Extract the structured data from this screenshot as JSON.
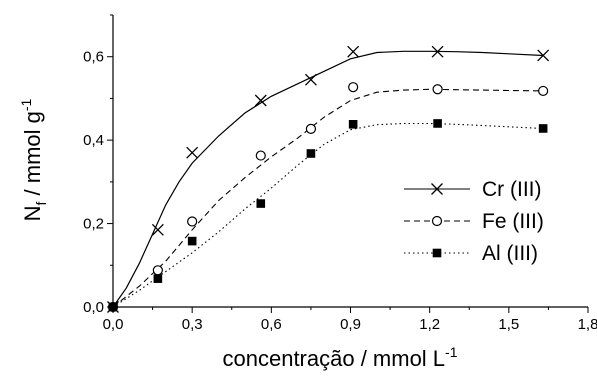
{
  "chart_data": {
    "type": "line",
    "xlabel": "concentração / mmol L",
    "xlabel_sup": "-1",
    "ylabel_main": "N",
    "ylabel_sub": "f",
    "ylabel_rest": " / mmol g",
    "ylabel_sup": "-1",
    "xlim": [
      0.0,
      1.8
    ],
    "ylim": [
      0.0,
      0.7
    ],
    "xticks": [
      0.0,
      0.3,
      0.6,
      0.9,
      1.2,
      1.5,
      1.8
    ],
    "xtick_labels": [
      "0,0",
      "0,3",
      "0,6",
      "0,9",
      "1,2",
      "1,5",
      "1,8"
    ],
    "yticks": [
      0.0,
      0.2,
      0.4,
      0.6
    ],
    "ytick_labels": [
      "0,0",
      "0,2",
      "0,4",
      "0,6"
    ],
    "legend_position": "lower-right",
    "grid": false,
    "series": [
      {
        "name": "Cr (III)",
        "marker": "x",
        "line": "solid",
        "x": [
          0.0,
          0.17,
          0.3,
          0.56,
          0.75,
          0.91,
          1.23,
          1.63
        ],
        "y": [
          0.0,
          0.185,
          0.37,
          0.495,
          0.545,
          0.612,
          0.612,
          0.603
        ],
        "curve_x": [
          0.0,
          0.05,
          0.1,
          0.15,
          0.2,
          0.25,
          0.3,
          0.4,
          0.5,
          0.6,
          0.7,
          0.8,
          0.9,
          1.0,
          1.1,
          1.2,
          1.3,
          1.4,
          1.5,
          1.63
        ],
        "curve_y": [
          0.0,
          0.045,
          0.105,
          0.175,
          0.245,
          0.3,
          0.345,
          0.41,
          0.465,
          0.505,
          0.535,
          0.565,
          0.595,
          0.61,
          0.613,
          0.613,
          0.612,
          0.61,
          0.607,
          0.603
        ]
      },
      {
        "name": "Fe (III)",
        "marker": "circle",
        "line": "dashed",
        "x": [
          0.0,
          0.17,
          0.3,
          0.56,
          0.75,
          0.91,
          1.23,
          1.63
        ],
        "y": [
          0.0,
          0.088,
          0.205,
          0.363,
          0.427,
          0.527,
          0.522,
          0.518
        ],
        "curve_x": [
          0.0,
          0.1,
          0.2,
          0.3,
          0.4,
          0.5,
          0.6,
          0.7,
          0.8,
          0.9,
          1.0,
          1.1,
          1.2,
          1.3,
          1.4,
          1.5,
          1.63
        ],
        "curve_y": [
          0.0,
          0.05,
          0.11,
          0.185,
          0.255,
          0.31,
          0.36,
          0.405,
          0.455,
          0.495,
          0.515,
          0.52,
          0.522,
          0.521,
          0.52,
          0.519,
          0.518
        ]
      },
      {
        "name": "Al (III)",
        "marker": "square-filled",
        "line": "dotted",
        "x": [
          0.0,
          0.17,
          0.3,
          0.56,
          0.75,
          0.91,
          1.23,
          1.63
        ],
        "y": [
          0.0,
          0.068,
          0.158,
          0.248,
          0.368,
          0.438,
          0.44,
          0.428
        ],
        "curve_x": [
          0.0,
          0.1,
          0.2,
          0.3,
          0.4,
          0.5,
          0.6,
          0.7,
          0.8,
          0.9,
          1.0,
          1.1,
          1.2,
          1.3,
          1.4,
          1.5,
          1.63
        ],
        "curve_y": [
          0.0,
          0.04,
          0.085,
          0.13,
          0.18,
          0.235,
          0.285,
          0.34,
          0.39,
          0.425,
          0.437,
          0.44,
          0.44,
          0.438,
          0.435,
          0.432,
          0.428
        ]
      }
    ]
  }
}
